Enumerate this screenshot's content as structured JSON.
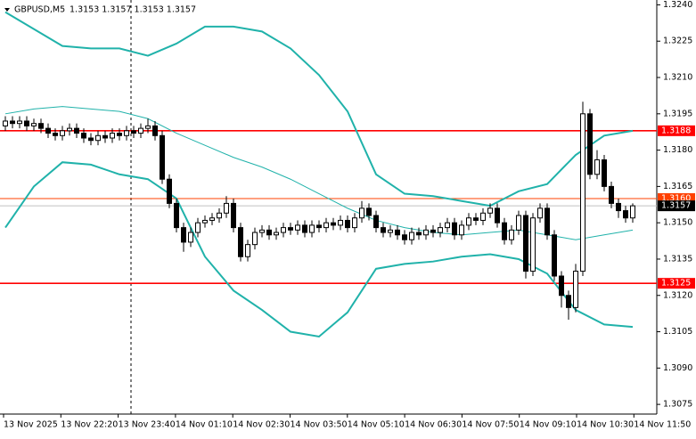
{
  "chart_data": {
    "type": "candlestick",
    "symbol": "GBPUSD,M5",
    "quote": "1.3153 1.3157 1.3153 1.3157",
    "x_labels": [
      "13 Nov 2025",
      "13 Nov 22:20",
      "13 Nov 23:40",
      "14 Nov 01:10",
      "14 Nov 02:30",
      "14 Nov 03:50",
      "14 Nov 05:10",
      "14 Nov 06:30",
      "14 Nov 07:50",
      "14 Nov 09:10",
      "14 Nov 10:30",
      "14 Nov 11:50"
    ],
    "open": [
      1.319,
      1.3192,
      1.3191,
      1.3192,
      1.319,
      1.3191,
      1.3189,
      1.3187,
      1.3186,
      1.3188,
      1.3189,
      1.3187,
      1.3185,
      1.3184,
      1.3186,
      1.3185,
      1.3187,
      1.3186,
      1.3188,
      1.3187,
      1.3189,
      1.319,
      1.3186,
      1.3168,
      1.3158,
      1.3148,
      1.3142,
      1.3146,
      1.315,
      1.3151,
      1.3152,
      1.3154,
      1.3158,
      1.3148,
      1.3136,
      1.3141,
      1.3146,
      1.3147,
      1.3145,
      1.3146,
      1.3148,
      1.3147,
      1.3149,
      1.3146,
      1.3149,
      1.3148,
      1.315,
      1.3149,
      1.3151,
      1.3148,
      1.3152,
      1.3156,
      1.3153,
      1.3148,
      1.3146,
      1.3147,
      1.3145,
      1.3143,
      1.3146,
      1.3145,
      1.3147,
      1.3146,
      1.3148,
      1.315,
      1.3145,
      1.3149,
      1.3152,
      1.3151,
      1.3154,
      1.3156,
      1.315,
      1.3143,
      1.3147,
      1.3153,
      1.313,
      1.3152,
      1.3156,
      1.3145,
      1.3128,
      1.312,
      1.3115,
      1.313,
      1.3195,
      1.317,
      1.3176,
      1.3165,
      1.3158,
      1.3155,
      1.3152
    ],
    "high": [
      1.3194,
      1.3194,
      1.3194,
      1.3194,
      1.3193,
      1.3193,
      1.3191,
      1.3189,
      1.319,
      1.3191,
      1.3191,
      1.3189,
      1.3187,
      1.3188,
      1.3188,
      1.3189,
      1.3189,
      1.319,
      1.319,
      1.3191,
      1.3193,
      1.3192,
      1.3188,
      1.317,
      1.316,
      1.315,
      1.3148,
      1.3152,
      1.3153,
      1.3154,
      1.3156,
      1.3161,
      1.316,
      1.315,
      1.3143,
      1.3148,
      1.3149,
      1.3149,
      1.3148,
      1.315,
      1.315,
      1.3151,
      1.3151,
      1.3151,
      1.3151,
      1.3152,
      1.3152,
      1.3153,
      1.3153,
      1.3154,
      1.3159,
      1.3158,
      1.3155,
      1.315,
      1.3149,
      1.3149,
      1.3147,
      1.3148,
      1.3148,
      1.3149,
      1.3149,
      1.315,
      1.3152,
      1.3152,
      1.3151,
      1.3154,
      1.3154,
      1.3156,
      1.3158,
      1.3158,
      1.3152,
      1.3149,
      1.3155,
      1.3155,
      1.3154,
      1.3158,
      1.3158,
      1.3147,
      1.313,
      1.3122,
      1.3133,
      1.32,
      1.3197,
      1.318,
      1.3178,
      1.3167,
      1.316,
      1.3157,
      1.3158
    ],
    "low": [
      1.3188,
      1.3189,
      1.3189,
      1.3188,
      1.3188,
      1.3187,
      1.3185,
      1.3184,
      1.3184,
      1.3186,
      1.3185,
      1.3183,
      1.3182,
      1.3182,
      1.3183,
      1.3183,
      1.3184,
      1.3184,
      1.3185,
      1.3185,
      1.3187,
      1.3184,
      1.3166,
      1.3156,
      1.3146,
      1.3138,
      1.314,
      1.3144,
      1.3148,
      1.3149,
      1.315,
      1.3152,
      1.3146,
      1.3134,
      1.3134,
      1.3139,
      1.3144,
      1.3143,
      1.3143,
      1.3144,
      1.3145,
      1.3145,
      1.3144,
      1.3144,
      1.3146,
      1.3146,
      1.3147,
      1.3147,
      1.3146,
      1.3146,
      1.315,
      1.3151,
      1.3146,
      1.3144,
      1.3144,
      1.3143,
      1.3141,
      1.3141,
      1.3143,
      1.3143,
      1.3144,
      1.3144,
      1.3146,
      1.3143,
      1.3143,
      1.3147,
      1.3149,
      1.3149,
      1.3152,
      1.3148,
      1.3141,
      1.3141,
      1.3145,
      1.3127,
      1.3128,
      1.315,
      1.3143,
      1.3126,
      1.3115,
      1.311,
      1.3113,
      1.3128,
      1.3168,
      1.3168,
      1.3163,
      1.3156,
      1.3152,
      1.315,
      1.315
    ],
    "close": [
      1.3192,
      1.3191,
      1.3192,
      1.319,
      1.3191,
      1.3189,
      1.3187,
      1.3186,
      1.3188,
      1.3189,
      1.3187,
      1.3185,
      1.3184,
      1.3186,
      1.3185,
      1.3187,
      1.3186,
      1.3188,
      1.3187,
      1.3189,
      1.319,
      1.3186,
      1.3168,
      1.3158,
      1.3148,
      1.3142,
      1.3146,
      1.315,
      1.3151,
      1.3152,
      1.3154,
      1.3158,
      1.3148,
      1.3136,
      1.3141,
      1.3146,
      1.3147,
      1.3145,
      1.3146,
      1.3148,
      1.3147,
      1.3149,
      1.3146,
      1.3149,
      1.3148,
      1.315,
      1.3149,
      1.3151,
      1.3148,
      1.3152,
      1.3156,
      1.3153,
      1.3148,
      1.3146,
      1.3147,
      1.3145,
      1.3143,
      1.3146,
      1.3145,
      1.3147,
      1.3146,
      1.3148,
      1.315,
      1.3145,
      1.3149,
      1.3152,
      1.3151,
      1.3154,
      1.3156,
      1.315,
      1.3143,
      1.3147,
      1.3153,
      1.313,
      1.3152,
      1.3156,
      1.3145,
      1.3128,
      1.312,
      1.3115,
      1.313,
      1.3195,
      1.317,
      1.3176,
      1.3165,
      1.3158,
      1.3155,
      1.3152,
      1.3157
    ],
    "band_x": [
      0,
      4,
      8,
      12,
      16,
      20,
      24,
      28,
      32,
      36,
      40,
      44,
      48,
      52,
      56,
      60,
      64,
      68,
      72,
      76,
      80,
      84,
      88
    ],
    "bands": [
      {
        "color": "#20b2aa",
        "values": [
          1.3237,
          1.323,
          1.3223,
          1.3222,
          1.3222,
          1.3219,
          1.3224,
          1.3231,
          1.3231,
          1.3229,
          1.3222,
          1.3211,
          1.3196,
          1.317,
          1.3162,
          1.3161,
          1.3159,
          1.3157,
          1.3163,
          1.3166,
          1.3178,
          1.3186,
          1.3188
        ]
      },
      {
        "color": "#20b2aa",
        "values": [
          1.3195,
          1.3197,
          1.3198,
          1.3197,
          1.3196,
          1.3193,
          1.3187,
          1.3182,
          1.3177,
          1.3173,
          1.3168,
          1.3162,
          1.3156,
          1.3151,
          1.3148,
          1.3146,
          1.3145,
          1.3146,
          1.3147,
          1.3145,
          1.3143,
          1.3145,
          1.3147
        ]
      },
      {
        "color": "#20b2aa",
        "values": [
          1.3148,
          1.3165,
          1.3175,
          1.3174,
          1.317,
          1.3168,
          1.316,
          1.3136,
          1.3122,
          1.3114,
          1.3105,
          1.3103,
          1.3113,
          1.3131,
          1.3133,
          1.3134,
          1.3136,
          1.3137,
          1.3135,
          1.3129,
          1.3114,
          1.3108,
          1.3107
        ]
      }
    ],
    "levels": {
      "values": [
        1.3188,
        1.316,
        1.3125
      ],
      "value_labels": [
        "1.3188",
        "1.3160",
        "1.3125"
      ],
      "colors": [
        "#ff0000",
        "#ff4000",
        "#ff0000"
      ]
    },
    "last": 1.3157,
    "ylim": [
      1.3071,
      1.3242
    ],
    "yticks": [
      {
        "value": 1.324,
        "label": "1.3240"
      },
      1.3225,
      {
        "value": 1.321,
        "label": "1.3210"
      },
      1.3195,
      {
        "value": 1.318,
        "label": "1.3180"
      },
      1.3165,
      {
        "value": 1.315,
        "label": "1.3150"
      },
      1.3135,
      {
        "value": 1.312,
        "label": "1.3120"
      },
      1.3105,
      {
        "value": 1.309,
        "label": "1.3090"
      },
      1.3075
    ]
  }
}
